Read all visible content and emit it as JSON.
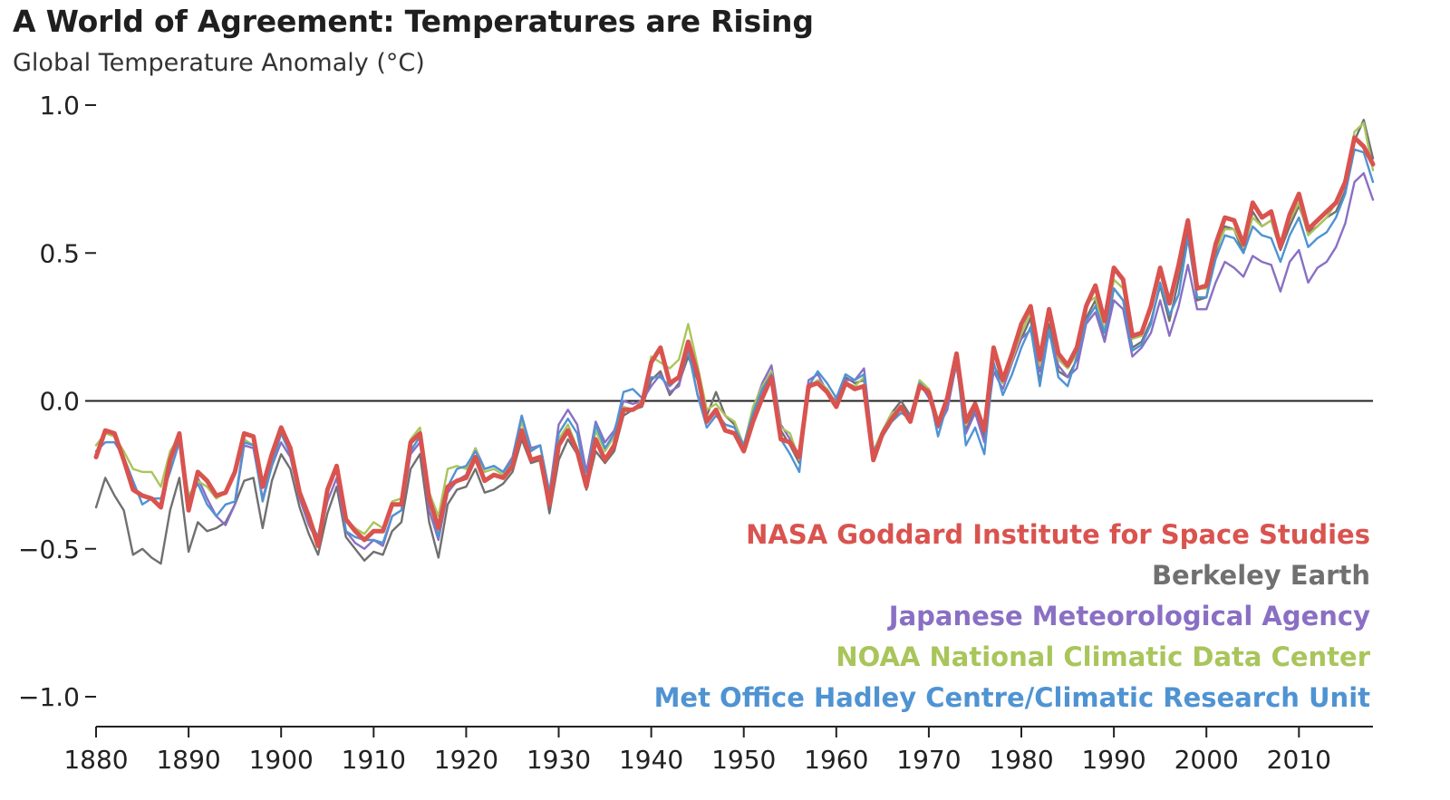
{
  "chart_data": {
    "type": "line",
    "title": "A World of Agreement: Temperatures are Rising",
    "ylabel": "Global Temperature Anomaly (°C)",
    "xlabel": "",
    "xlim": [
      1880,
      2018
    ],
    "ylim": [
      -1.0,
      1.0
    ],
    "x_ticks": [
      1880,
      1890,
      1900,
      1910,
      1920,
      1930,
      1940,
      1950,
      1960,
      1970,
      1980,
      1990,
      2000,
      2010
    ],
    "y_ticks": [
      {
        "value": 1.0,
        "label": "1.0"
      },
      {
        "value": 0.5,
        "label": "0.5"
      },
      {
        "value": 0.0,
        "label": "0.0"
      },
      {
        "value": -0.5,
        "label": "−0.5"
      },
      {
        "value": -1.0,
        "label": "−1.0"
      }
    ],
    "grid": false,
    "zero_line": true,
    "legend_position": "bottom-right",
    "x_start": 1880,
    "series": [
      {
        "name": "NASA Goddard Institute for Space Studies",
        "color": "#d9534f",
        "values": [
          -0.19,
          -0.1,
          -0.11,
          -0.2,
          -0.3,
          -0.32,
          -0.33,
          -0.36,
          -0.2,
          -0.11,
          -0.37,
          -0.24,
          -0.27,
          -0.32,
          -0.31,
          -0.24,
          -0.11,
          -0.12,
          -0.29,
          -0.18,
          -0.09,
          -0.16,
          -0.31,
          -0.39,
          -0.49,
          -0.3,
          -0.22,
          -0.4,
          -0.44,
          -0.47,
          -0.44,
          -0.44,
          -0.35,
          -0.35,
          -0.14,
          -0.11,
          -0.33,
          -0.43,
          -0.29,
          -0.27,
          -0.26,
          -0.19,
          -0.27,
          -0.25,
          -0.26,
          -0.22,
          -0.1,
          -0.2,
          -0.19,
          -0.35,
          -0.15,
          -0.1,
          -0.17,
          -0.29,
          -0.13,
          -0.2,
          -0.15,
          -0.03,
          -0.03,
          -0.01,
          0.13,
          0.18,
          0.06,
          0.08,
          0.2,
          0.09,
          -0.07,
          -0.03,
          -0.1,
          -0.11,
          -0.17,
          -0.07,
          0.01,
          0.08,
          -0.13,
          -0.14,
          -0.19,
          0.05,
          0.06,
          0.03,
          -0.02,
          0.06,
          0.04,
          0.05,
          -0.2,
          -0.11,
          -0.06,
          -0.02,
          -0.07,
          0.05,
          0.03,
          -0.08,
          0.01,
          0.16,
          -0.07,
          -0.01,
          -0.1,
          0.18,
          0.07,
          0.16,
          0.26,
          0.32,
          0.14,
          0.31,
          0.16,
          0.12,
          0.18,
          0.32,
          0.39,
          0.27,
          0.45,
          0.41,
          0.22,
          0.23,
          0.32,
          0.45,
          0.33,
          0.46,
          0.61,
          0.38,
          0.39,
          0.53,
          0.62,
          0.61,
          0.53,
          0.67,
          0.62,
          0.64,
          0.52,
          0.63,
          0.7,
          0.58,
          0.61,
          0.64,
          0.67,
          0.74,
          0.89,
          0.86,
          0.8
        ]
      },
      {
        "name": "Berkeley Earth",
        "color": "#707070",
        "values": [
          -0.36,
          -0.26,
          -0.32,
          -0.37,
          -0.52,
          -0.5,
          -0.53,
          -0.55,
          -0.37,
          -0.26,
          -0.51,
          -0.41,
          -0.44,
          -0.43,
          -0.41,
          -0.35,
          -0.27,
          -0.26,
          -0.43,
          -0.27,
          -0.18,
          -0.23,
          -0.36,
          -0.45,
          -0.52,
          -0.38,
          -0.29,
          -0.46,
          -0.5,
          -0.54,
          -0.51,
          -0.52,
          -0.44,
          -0.41,
          -0.23,
          -0.18,
          -0.41,
          -0.53,
          -0.35,
          -0.3,
          -0.29,
          -0.23,
          -0.31,
          -0.3,
          -0.28,
          -0.24,
          -0.13,
          -0.21,
          -0.2,
          -0.38,
          -0.2,
          -0.13,
          -0.18,
          -0.3,
          -0.17,
          -0.21,
          -0.17,
          -0.05,
          -0.03,
          -0.02,
          0.07,
          0.1,
          0.02,
          0.06,
          0.15,
          0.07,
          -0.05,
          0.03,
          -0.05,
          -0.08,
          -0.15,
          -0.05,
          0.02,
          0.1,
          -0.1,
          -0.15,
          -0.21,
          0.04,
          0.07,
          0.04,
          -0.01,
          0.08,
          0.06,
          0.07,
          -0.18,
          -0.11,
          -0.04,
          0.0,
          -0.05,
          0.06,
          0.04,
          -0.07,
          0.0,
          0.12,
          -0.1,
          -0.03,
          -0.12,
          0.12,
          0.06,
          0.14,
          0.21,
          0.28,
          0.06,
          0.26,
          0.1,
          0.08,
          0.14,
          0.28,
          0.34,
          0.2,
          0.38,
          0.34,
          0.18,
          0.2,
          0.27,
          0.39,
          0.27,
          0.41,
          0.58,
          0.34,
          0.35,
          0.5,
          0.59,
          0.58,
          0.5,
          0.64,
          0.59,
          0.61,
          0.51,
          0.59,
          0.66,
          0.57,
          0.59,
          0.62,
          0.64,
          0.71,
          0.88,
          0.95,
          0.82
        ]
      },
      {
        "name": "Japanese Meteorological Agency",
        "color": "#8a6fc4",
        "values": [
          null,
          null,
          null,
          null,
          null,
          null,
          null,
          null,
          null,
          null,
          null,
          -0.26,
          -0.33,
          -0.39,
          -0.42,
          -0.35,
          -0.15,
          -0.16,
          -0.33,
          -0.22,
          -0.14,
          -0.19,
          -0.33,
          -0.42,
          -0.48,
          -0.34,
          -0.26,
          -0.44,
          -0.48,
          -0.5,
          -0.47,
          -0.49,
          -0.39,
          -0.37,
          -0.18,
          -0.14,
          -0.37,
          -0.47,
          -0.31,
          -0.27,
          -0.25,
          -0.16,
          -0.23,
          -0.22,
          -0.24,
          -0.19,
          -0.05,
          -0.16,
          -0.15,
          -0.31,
          -0.08,
          -0.03,
          -0.08,
          -0.24,
          -0.07,
          -0.14,
          -0.1,
          0.0,
          -0.01,
          0.0,
          0.05,
          0.09,
          0.03,
          0.05,
          0.18,
          0.02,
          -0.06,
          -0.04,
          -0.08,
          -0.09,
          -0.15,
          -0.03,
          0.06,
          0.12,
          -0.08,
          -0.13,
          -0.2,
          0.07,
          0.09,
          0.03,
          0.0,
          0.07,
          0.07,
          0.11,
          -0.17,
          -0.1,
          -0.04,
          -0.03,
          -0.05,
          0.06,
          0.01,
          -0.09,
          -0.03,
          0.13,
          -0.11,
          -0.04,
          -0.14,
          0.1,
          0.04,
          0.13,
          0.21,
          0.24,
          0.1,
          0.23,
          0.12,
          0.08,
          0.11,
          0.26,
          0.3,
          0.2,
          0.34,
          0.31,
          0.15,
          0.18,
          0.23,
          0.34,
          0.22,
          0.32,
          0.46,
          0.31,
          0.31,
          0.4,
          0.47,
          0.45,
          0.42,
          0.49,
          0.47,
          0.46,
          0.37,
          0.47,
          0.51,
          0.4,
          0.45,
          0.47,
          0.52,
          0.6,
          0.74,
          0.77,
          0.68
        ]
      },
      {
        "name": "NOAA National Climatic Data Center",
        "color": "#a9c55b",
        "values": [
          -0.15,
          -0.11,
          -0.12,
          -0.17,
          -0.23,
          -0.24,
          -0.24,
          -0.29,
          -0.17,
          -0.12,
          -0.32,
          -0.27,
          -0.29,
          -0.33,
          -0.31,
          -0.25,
          -0.13,
          -0.15,
          -0.28,
          -0.18,
          -0.11,
          -0.17,
          -0.31,
          -0.38,
          -0.47,
          -0.3,
          -0.23,
          -0.4,
          -0.43,
          -0.45,
          -0.41,
          -0.43,
          -0.34,
          -0.33,
          -0.13,
          -0.09,
          -0.31,
          -0.39,
          -0.23,
          -0.22,
          -0.23,
          -0.16,
          -0.24,
          -0.23,
          -0.25,
          -0.2,
          -0.07,
          -0.17,
          -0.15,
          -0.31,
          -0.13,
          -0.08,
          -0.16,
          -0.27,
          -0.1,
          -0.17,
          -0.12,
          -0.02,
          -0.03,
          0.0,
          0.15,
          0.13,
          0.11,
          0.14,
          0.26,
          0.12,
          -0.03,
          -0.01,
          -0.05,
          -0.07,
          -0.15,
          -0.02,
          0.05,
          0.1,
          -0.09,
          -0.11,
          -0.2,
          0.05,
          0.07,
          0.04,
          -0.01,
          0.06,
          0.05,
          0.08,
          -0.17,
          -0.1,
          -0.04,
          -0.03,
          -0.06,
          0.07,
          0.04,
          -0.07,
          0.02,
          0.14,
          -0.08,
          -0.02,
          -0.1,
          0.16,
          0.06,
          0.14,
          0.23,
          0.3,
          0.12,
          0.29,
          0.14,
          0.11,
          0.16,
          0.33,
          0.35,
          0.24,
          0.41,
          0.38,
          0.21,
          0.22,
          0.31,
          0.43,
          0.33,
          0.44,
          0.6,
          0.38,
          0.38,
          0.51,
          0.58,
          0.58,
          0.52,
          0.62,
          0.59,
          0.61,
          0.52,
          0.61,
          0.67,
          0.56,
          0.59,
          0.62,
          0.67,
          0.74,
          0.91,
          0.94,
          0.78
        ]
      },
      {
        "name": "Met Office Hadley Centre/Climatic Research Unit",
        "color": "#4f93d2",
        "values": [
          -0.17,
          -0.14,
          -0.14,
          -0.19,
          -0.27,
          -0.35,
          -0.33,
          -0.33,
          -0.24,
          -0.14,
          -0.33,
          -0.28,
          -0.35,
          -0.39,
          -0.35,
          -0.34,
          -0.14,
          -0.15,
          -0.34,
          -0.22,
          -0.11,
          -0.18,
          -0.31,
          -0.4,
          -0.46,
          -0.29,
          -0.23,
          -0.44,
          -0.46,
          -0.47,
          -0.47,
          -0.48,
          -0.39,
          -0.37,
          -0.17,
          -0.12,
          -0.33,
          -0.46,
          -0.29,
          -0.23,
          -0.22,
          -0.17,
          -0.23,
          -0.22,
          -0.24,
          -0.2,
          -0.05,
          -0.17,
          -0.15,
          -0.31,
          -0.11,
          -0.06,
          -0.11,
          -0.27,
          -0.08,
          -0.16,
          -0.11,
          0.03,
          0.04,
          0.01,
          0.08,
          0.08,
          0.05,
          0.08,
          0.17,
          0.02,
          -0.09,
          -0.05,
          -0.08,
          -0.09,
          -0.15,
          -0.04,
          0.04,
          0.09,
          -0.13,
          -0.18,
          -0.24,
          0.05,
          0.1,
          0.06,
          0.01,
          0.09,
          0.07,
          0.09,
          -0.17,
          -0.12,
          -0.07,
          -0.04,
          -0.06,
          0.06,
          0.03,
          -0.12,
          -0.01,
          0.14,
          -0.15,
          -0.09,
          -0.18,
          0.13,
          0.02,
          0.09,
          0.18,
          0.25,
          0.05,
          0.24,
          0.08,
          0.05,
          0.15,
          0.27,
          0.32,
          0.23,
          0.38,
          0.34,
          0.17,
          0.19,
          0.26,
          0.4,
          0.29,
          0.36,
          0.55,
          0.35,
          0.35,
          0.48,
          0.56,
          0.55,
          0.5,
          0.59,
          0.56,
          0.55,
          0.47,
          0.56,
          0.62,
          0.52,
          0.55,
          0.57,
          0.62,
          0.7,
          0.85,
          0.84,
          0.74
        ]
      }
    ]
  }
}
